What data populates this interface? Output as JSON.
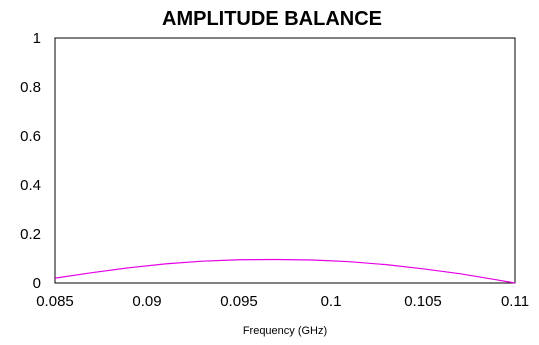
{
  "chart_data": {
    "type": "line",
    "title": "AMPLITUDE BALANCE",
    "xlabel": "Frequency (GHz)",
    "ylabel": "",
    "xlim": [
      0.085,
      0.11
    ],
    "ylim": [
      0,
      1
    ],
    "x_ticks": [
      "0.085",
      "0.09",
      "0.095",
      "0.1",
      "0.105",
      "0.11"
    ],
    "y_ticks": [
      "0",
      "0.2",
      "0.4",
      "0.6",
      "0.8",
      "1"
    ],
    "grid": true,
    "series": [
      {
        "color": "#e600e6",
        "x": [
          0.085,
          0.087,
          0.089,
          0.091,
          0.093,
          0.095,
          0.097,
          0.099,
          0.101,
          0.103,
          0.105,
          0.107,
          0.109,
          0.11
        ],
        "y": [
          0.02,
          0.042,
          0.062,
          0.078,
          0.089,
          0.095,
          0.096,
          0.094,
          0.087,
          0.075,
          0.058,
          0.038,
          0.013,
          0.0
        ]
      }
    ]
  }
}
